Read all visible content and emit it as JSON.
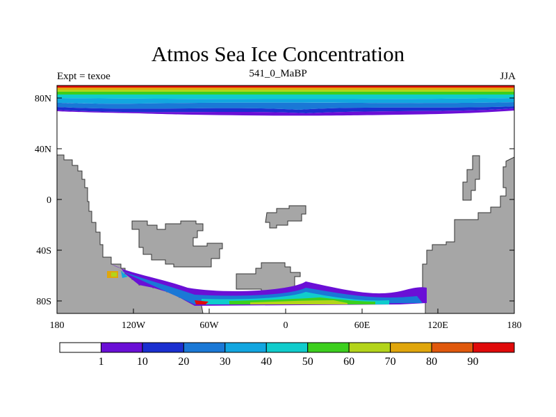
{
  "title": "Atmos Sea Ice Concentration",
  "subtitle_left": "Expt = texoe",
  "subtitle_center": "541_0_MaBP",
  "subtitle_right": "JJA",
  "lat_labels": [
    "80N",
    "40N",
    "0",
    "40S",
    "80S"
  ],
  "lon_labels": [
    "180",
    "120W",
    "60W",
    "0",
    "60E",
    "120E",
    "180"
  ],
  "colorbar": {
    "labels": [
      "1",
      "10",
      "20",
      "30",
      "40",
      "50",
      "60",
      "70",
      "80",
      "90"
    ],
    "colors": [
      "#ffffff",
      "#6a0fd6",
      "#1a2fd0",
      "#1a78d6",
      "#12a6e0",
      "#10cccc",
      "#3ccf1e",
      "#b3d41a",
      "#e0a60c",
      "#e0580c",
      "#e00a0a"
    ]
  },
  "colors": {
    "land": "#a6a6a6",
    "ocean": "#ffffff"
  },
  "chart_data": {
    "type": "filled-contour-map",
    "title": "Atmos Sea Ice Concentration",
    "projection": "cylindrical equidistant",
    "lon_range": [
      -180,
      180
    ],
    "lat_range": [
      -90,
      90
    ],
    "levels": [
      1,
      10,
      20,
      30,
      40,
      50,
      60,
      70,
      80,
      90
    ],
    "units": "%"
  }
}
